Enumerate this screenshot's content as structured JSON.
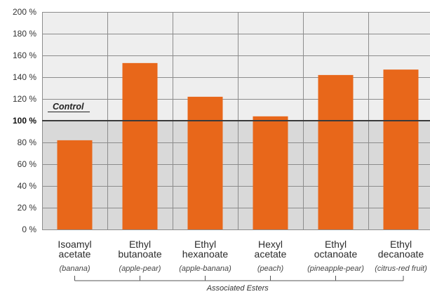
{
  "chart_data": {
    "type": "bar",
    "categories": [
      {
        "line1": "Isoamyl",
        "line2": "acetate",
        "aroma": "(banana)"
      },
      {
        "line1": "Ethyl",
        "line2": "butanoate",
        "aroma": "(apple-pear)"
      },
      {
        "line1": "Ethyl",
        "line2": "hexanoate",
        "aroma": "(apple-banana)"
      },
      {
        "line1": "Hexyl",
        "line2": "acetate",
        "aroma": "(peach)"
      },
      {
        "line1": "Ethyl",
        "line2": "octanoate",
        "aroma": "(pineapple-pear)"
      },
      {
        "line1": "Ethyl",
        "line2": "decanoate",
        "aroma": "(citrus-red fruit)"
      }
    ],
    "values": [
      82,
      153,
      122,
      104,
      142,
      147
    ],
    "ylim": [
      0,
      200
    ],
    "yticks": [
      {
        "value": 0,
        "label": "0 %"
      },
      {
        "value": 20,
        "label": "20 %"
      },
      {
        "value": 40,
        "label": "40 %"
      },
      {
        "value": 60,
        "label": "60 %"
      },
      {
        "value": 80,
        "label": "80 %"
      },
      {
        "value": 100,
        "label": "100 %"
      },
      {
        "value": 120,
        "label": "120 %"
      },
      {
        "value": 140,
        "label": "140 %"
      },
      {
        "value": 160,
        "label": "160 %"
      },
      {
        "value": 180,
        "label": "180 %"
      },
      {
        "value": 200,
        "label": "200 %"
      }
    ],
    "control": {
      "value": 100,
      "label": "Control"
    },
    "xlabel": "Associated Esters",
    "grid": true,
    "colors": {
      "bar": "#E8671A",
      "below_control_bg": "#D9D9D9",
      "above_control_bg": "#EEEEEE",
      "grid": "#8C8C8C",
      "control_line": "#3A3A3A"
    }
  }
}
